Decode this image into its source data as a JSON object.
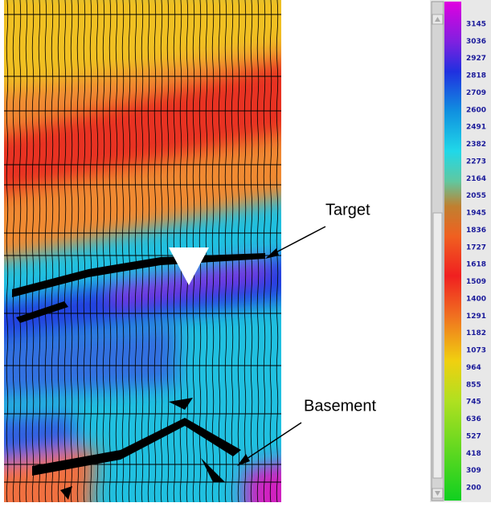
{
  "annotations": {
    "target": "Target",
    "basement": "Basement"
  },
  "colorbar": {
    "labels": [
      3145,
      3036,
      2927,
      2818,
      2709,
      2600,
      2491,
      2382,
      2273,
      2164,
      2055,
      1945,
      1836,
      1727,
      1618,
      1509,
      1400,
      1291,
      1182,
      1073,
      964,
      855,
      745,
      636,
      527,
      418,
      309,
      200
    ]
  }
}
